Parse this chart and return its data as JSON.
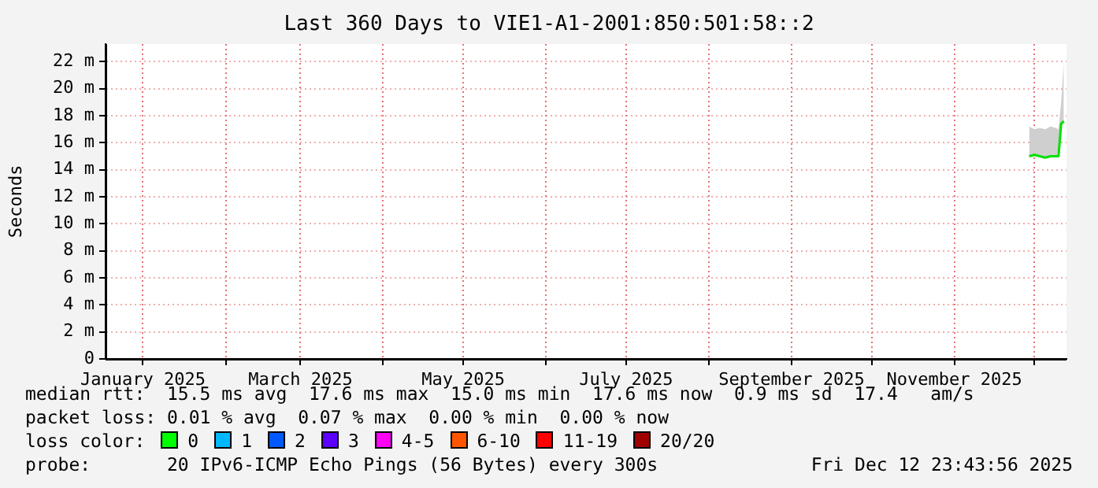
{
  "chart_data": {
    "type": "line",
    "title": "Last 360 Days to VIE1-A1-2001:850:501:58::2",
    "ylabel": "Seconds",
    "x": [
      "2025-11-29",
      "2025-12-01",
      "2025-12-03",
      "2025-12-05",
      "2025-12-07",
      "2025-12-09",
      "2025-12-10",
      "2025-12-11",
      "2025-12-12"
    ],
    "series": [
      {
        "color": "#00e000",
        "values": [
          15.0,
          15.1,
          15.0,
          14.9,
          15.0,
          15.0,
          15.0,
          17.4,
          17.6
        ],
        "lower": [
          15.0,
          15.1,
          15.0,
          14.9,
          15.0,
          15.0,
          15.0,
          17.4,
          17.6
        ],
        "upper": [
          17.2,
          17.0,
          17.1,
          17.0,
          17.2,
          17.1,
          17.0,
          19.0,
          22.0
        ]
      }
    ],
    "xlim": [
      "2024-12-18",
      "2025-12-13"
    ],
    "xticks": [
      {
        "value": "2025-01-01",
        "label": "January 2025"
      },
      {
        "value": "2025-02-01",
        "label": null
      },
      {
        "value": "2025-03-01",
        "label": "March 2025"
      },
      {
        "value": "2025-04-01",
        "label": null
      },
      {
        "value": "2025-05-01",
        "label": "May 2025"
      },
      {
        "value": "2025-06-01",
        "label": null
      },
      {
        "value": "2025-07-01",
        "label": "July 2025"
      },
      {
        "value": "2025-08-01",
        "label": null
      },
      {
        "value": "2025-09-01",
        "label": "September 2025"
      },
      {
        "value": "2025-10-01",
        "label": null
      },
      {
        "value": "2025-11-01",
        "label": "November 2025"
      },
      {
        "value": "2025-12-01",
        "label": null
      }
    ],
    "ylim": [
      0,
      23.3
    ],
    "yticks": [
      0,
      {
        "value": 2,
        "label": "2 m"
      },
      {
        "value": 4,
        "label": "4 m"
      },
      {
        "value": 6,
        "label": "6 m"
      },
      {
        "value": 8,
        "label": "8 m"
      },
      {
        "value": 10,
        "label": "10 m"
      },
      {
        "value": 12,
        "label": "12 m"
      },
      {
        "value": 14,
        "label": "14 m"
      },
      {
        "value": 16,
        "label": "16 m"
      },
      {
        "value": 18,
        "label": "18 m"
      },
      {
        "value": 20,
        "label": "20 m"
      },
      {
        "value": 22,
        "label": "22 m"
      }
    ],
    "grid": true,
    "legend": false,
    "marker": "none",
    "line_style": "solid",
    "annotations": [
      "median rtt:  15.5 ms avg  17.6 ms max  15.0 ms min  17.6 ms now  0.9 ms sd  17.4   am/s",
      "packet loss: 0.01 % avg  0.07 % max  0.00 % min  0.00 % now",
      "loss color:",
      "0",
      "1",
      "2",
      "3",
      "4-5",
      "6-10",
      "11-19",
      "20/20",
      "probe:       20 IPv6-ICMP Echo Pings (56 Bytes) every 300s",
      "Fri Dec 12 23:43:56 2025"
    ]
  }
}
